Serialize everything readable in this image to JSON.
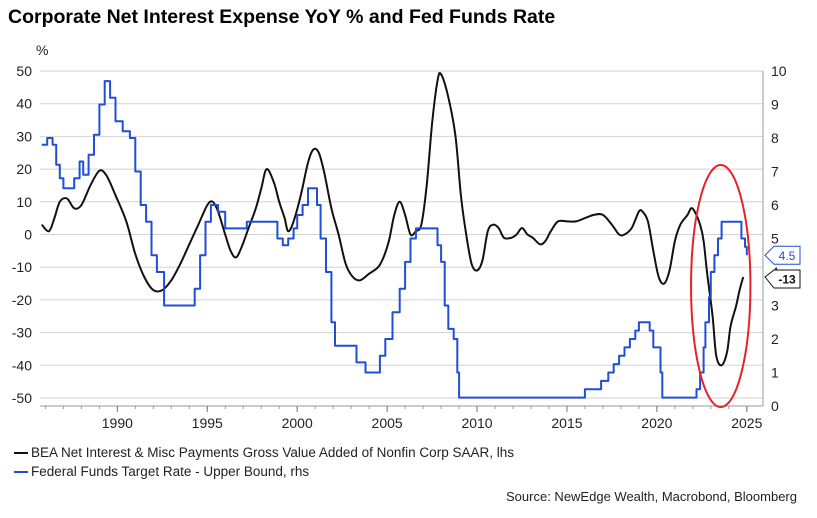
{
  "chart_data": {
    "type": "line",
    "title": "Corporate Net Interest Expense YoY % and Fed Funds Rate",
    "left_unit": "%",
    "y_left_ticks": [
      50,
      40,
      30,
      20,
      10,
      0,
      -10,
      -20,
      -30,
      -40,
      -50
    ],
    "y_right_ticks": [
      10,
      9,
      8,
      7,
      6,
      5,
      4,
      3,
      2,
      1,
      0
    ],
    "x_ticks": [
      "1990",
      "1995",
      "2000",
      "2005",
      "2010",
      "2015",
      "2020",
      "2025"
    ],
    "ylim_left": [
      -52,
      52
    ],
    "ylim_right": [
      0,
      10.4
    ],
    "xlim": [
      1985.7,
      2025.9
    ],
    "grid": true,
    "annotation_oval": {
      "from_year": 2021.9,
      "to_year": 2025.2,
      "color": "#e8202a"
    },
    "series": [
      {
        "name": "BEA Net Interest & Misc Payments Gross Value Added of Nonfin Corp SAAR, lhs",
        "axis": "left",
        "color": "#111111",
        "end_label": "-13",
        "points": [
          [
            1985.8,
            3
          ],
          [
            1986.2,
            1
          ],
          [
            1986.5,
            5
          ],
          [
            1986.8,
            10
          ],
          [
            1987.2,
            11
          ],
          [
            1987.6,
            8
          ],
          [
            1988.0,
            9
          ],
          [
            1988.5,
            15
          ],
          [
            1989.0,
            19.5
          ],
          [
            1989.4,
            18
          ],
          [
            1989.9,
            12
          ],
          [
            1990.5,
            4
          ],
          [
            1991.0,
            -6
          ],
          [
            1991.5,
            -13
          ],
          [
            1992.0,
            -17
          ],
          [
            1992.5,
            -17
          ],
          [
            1993.0,
            -14
          ],
          [
            1993.5,
            -9
          ],
          [
            1994.0,
            -3
          ],
          [
            1994.5,
            3
          ],
          [
            1995.0,
            9
          ],
          [
            1995.3,
            10
          ],
          [
            1995.6,
            7
          ],
          [
            1996.0,
            0
          ],
          [
            1996.3,
            -5
          ],
          [
            1996.6,
            -7
          ],
          [
            1996.9,
            -4
          ],
          [
            1997.3,
            2
          ],
          [
            1997.7,
            8
          ],
          [
            1998.0,
            14
          ],
          [
            1998.3,
            20
          ],
          [
            1998.7,
            16
          ],
          [
            1999.0,
            10
          ],
          [
            1999.3,
            5
          ],
          [
            1999.5,
            1
          ],
          [
            1999.8,
            4
          ],
          [
            2000.2,
            12
          ],
          [
            2000.6,
            22
          ],
          [
            2000.9,
            26
          ],
          [
            2001.2,
            25
          ],
          [
            2001.5,
            19
          ],
          [
            2001.9,
            8
          ],
          [
            2002.3,
            0
          ],
          [
            2002.7,
            -9
          ],
          [
            2003.1,
            -13
          ],
          [
            2003.5,
            -14
          ],
          [
            2004.0,
            -12
          ],
          [
            2004.5,
            -10
          ],
          [
            2004.8,
            -7
          ],
          [
            2005.1,
            -2
          ],
          [
            2005.4,
            6
          ],
          [
            2005.7,
            10
          ],
          [
            2006.0,
            6
          ],
          [
            2006.3,
            0
          ],
          [
            2006.6,
            1
          ],
          [
            2006.9,
            3
          ],
          [
            2007.2,
            15
          ],
          [
            2007.5,
            34
          ],
          [
            2007.8,
            47
          ],
          [
            2008.0,
            49
          ],
          [
            2008.4,
            42
          ],
          [
            2008.8,
            30
          ],
          [
            2009.1,
            12
          ],
          [
            2009.4,
            0
          ],
          [
            2009.7,
            -9
          ],
          [
            2010.0,
            -11
          ],
          [
            2010.3,
            -8
          ],
          [
            2010.6,
            1
          ],
          [
            2010.9,
            3
          ],
          [
            2011.2,
            2
          ],
          [
            2011.5,
            -1
          ],
          [
            2011.9,
            -1
          ],
          [
            2012.2,
            0
          ],
          [
            2012.5,
            2
          ],
          [
            2012.8,
            0
          ],
          [
            2013.1,
            -1
          ],
          [
            2013.5,
            -3
          ],
          [
            2013.8,
            -2
          ],
          [
            2014.1,
            1
          ],
          [
            2014.5,
            4
          ],
          [
            2015.0,
            4
          ],
          [
            2015.5,
            4
          ],
          [
            2016.0,
            5
          ],
          [
            2016.5,
            6
          ],
          [
            2017.0,
            6
          ],
          [
            2017.5,
            3
          ],
          [
            2017.9,
            0
          ],
          [
            2018.2,
            0
          ],
          [
            2018.6,
            2
          ],
          [
            2019.0,
            7
          ],
          [
            2019.2,
            7
          ],
          [
            2019.5,
            4
          ],
          [
            2019.8,
            -5
          ],
          [
            2020.1,
            -13
          ],
          [
            2020.4,
            -15
          ],
          [
            2020.7,
            -11
          ],
          [
            2021.0,
            -2
          ],
          [
            2021.3,
            3
          ],
          [
            2021.7,
            6
          ],
          [
            2021.9,
            8
          ],
          [
            2022.1,
            7
          ],
          [
            2022.4,
            3
          ],
          [
            2022.6,
            -2
          ],
          [
            2022.8,
            -12
          ],
          [
            2023.1,
            -25
          ],
          [
            2023.3,
            -37
          ],
          [
            2023.6,
            -40
          ],
          [
            2023.9,
            -36
          ],
          [
            2024.1,
            -28
          ],
          [
            2024.4,
            -22
          ],
          [
            2024.6,
            -17
          ],
          [
            2024.8,
            -13
          ]
        ]
      },
      {
        "name": "Federal Funds Target Rate - Upper Bound, rhs",
        "axis": "right",
        "color": "#1f4fd6",
        "end_label": "4.5",
        "points": [
          [
            1985.8,
            7.8
          ],
          [
            1986.1,
            8.0
          ],
          [
            1986.4,
            7.8
          ],
          [
            1986.6,
            7.2
          ],
          [
            1986.8,
            6.8
          ],
          [
            1987.0,
            6.5
          ],
          [
            1987.3,
            6.5
          ],
          [
            1987.6,
            6.8
          ],
          [
            1987.9,
            7.3
          ],
          [
            1988.1,
            6.9
          ],
          [
            1988.4,
            7.5
          ],
          [
            1988.7,
            8.1
          ],
          [
            1989.0,
            9.0
          ],
          [
            1989.3,
            9.7
          ],
          [
            1989.6,
            9.2
          ],
          [
            1989.9,
            8.5
          ],
          [
            1990.3,
            8.2
          ],
          [
            1990.7,
            8.0
          ],
          [
            1991.0,
            7.0
          ],
          [
            1991.3,
            6.0
          ],
          [
            1991.6,
            5.5
          ],
          [
            1991.9,
            4.5
          ],
          [
            1992.2,
            4.0
          ],
          [
            1992.6,
            3.0
          ],
          [
            1993.0,
            3.0
          ],
          [
            1993.5,
            3.0
          ],
          [
            1994.0,
            3.0
          ],
          [
            1994.3,
            3.5
          ],
          [
            1994.6,
            4.5
          ],
          [
            1994.9,
            5.5
          ],
          [
            1995.2,
            6.0
          ],
          [
            1995.6,
            5.8
          ],
          [
            1996.0,
            5.3
          ],
          [
            1996.5,
            5.3
          ],
          [
            1997.2,
            5.5
          ],
          [
            1998.0,
            5.5
          ],
          [
            1998.7,
            5.5
          ],
          [
            1998.9,
            5.0
          ],
          [
            1999.2,
            4.8
          ],
          [
            1999.5,
            5.0
          ],
          [
            1999.8,
            5.3
          ],
          [
            2000.0,
            5.7
          ],
          [
            2000.3,
            6.0
          ],
          [
            2000.6,
            6.5
          ],
          [
            2000.9,
            6.5
          ],
          [
            2001.1,
            6.0
          ],
          [
            2001.3,
            5.0
          ],
          [
            2001.6,
            4.0
          ],
          [
            2001.9,
            2.5
          ],
          [
            2002.1,
            1.8
          ],
          [
            2002.5,
            1.8
          ],
          [
            2003.0,
            1.8
          ],
          [
            2003.3,
            1.3
          ],
          [
            2003.8,
            1.0
          ],
          [
            2004.3,
            1.0
          ],
          [
            2004.6,
            1.5
          ],
          [
            2004.9,
            2.0
          ],
          [
            2005.3,
            2.8
          ],
          [
            2005.7,
            3.5
          ],
          [
            2006.0,
            4.3
          ],
          [
            2006.3,
            5.0
          ],
          [
            2006.6,
            5.3
          ],
          [
            2007.0,
            5.3
          ],
          [
            2007.5,
            5.3
          ],
          [
            2007.8,
            4.8
          ],
          [
            2008.0,
            4.3
          ],
          [
            2008.2,
            3.0
          ],
          [
            2008.4,
            2.3
          ],
          [
            2008.7,
            2.0
          ],
          [
            2008.9,
            1.0
          ],
          [
            2009.0,
            0.25
          ],
          [
            2012.0,
            0.25
          ],
          [
            2015.0,
            0.25
          ],
          [
            2015.9,
            0.25
          ],
          [
            2016.0,
            0.5
          ],
          [
            2016.9,
            0.75
          ],
          [
            2017.3,
            1.0
          ],
          [
            2017.6,
            1.25
          ],
          [
            2017.9,
            1.5
          ],
          [
            2018.2,
            1.75
          ],
          [
            2018.5,
            2.0
          ],
          [
            2018.8,
            2.25
          ],
          [
            2019.0,
            2.5
          ],
          [
            2019.5,
            2.5
          ],
          [
            2019.6,
            2.25
          ],
          [
            2019.8,
            1.75
          ],
          [
            2020.2,
            1.0
          ],
          [
            2020.3,
            0.25
          ],
          [
            2021.0,
            0.25
          ],
          [
            2022.0,
            0.25
          ],
          [
            2022.2,
            0.5
          ],
          [
            2022.4,
            1.0
          ],
          [
            2022.6,
            1.75
          ],
          [
            2022.7,
            2.5
          ],
          [
            2022.9,
            3.25
          ],
          [
            2023.0,
            4.0
          ],
          [
            2023.2,
            4.5
          ],
          [
            2023.4,
            5.0
          ],
          [
            2023.6,
            5.5
          ],
          [
            2024.0,
            5.5
          ],
          [
            2024.5,
            5.5
          ],
          [
            2024.7,
            5.0
          ],
          [
            2024.9,
            4.75
          ],
          [
            2025.0,
            4.5
          ]
        ]
      }
    ]
  },
  "legend": [
    "BEA Net Interest & Misc Payments Gross Value Added of Nonfin Corp SAAR, lhs",
    "Federal Funds Target Rate - Upper Bound, rhs"
  ],
  "source": "Source: NewEdge Wealth, Macrobond, Bloomberg"
}
